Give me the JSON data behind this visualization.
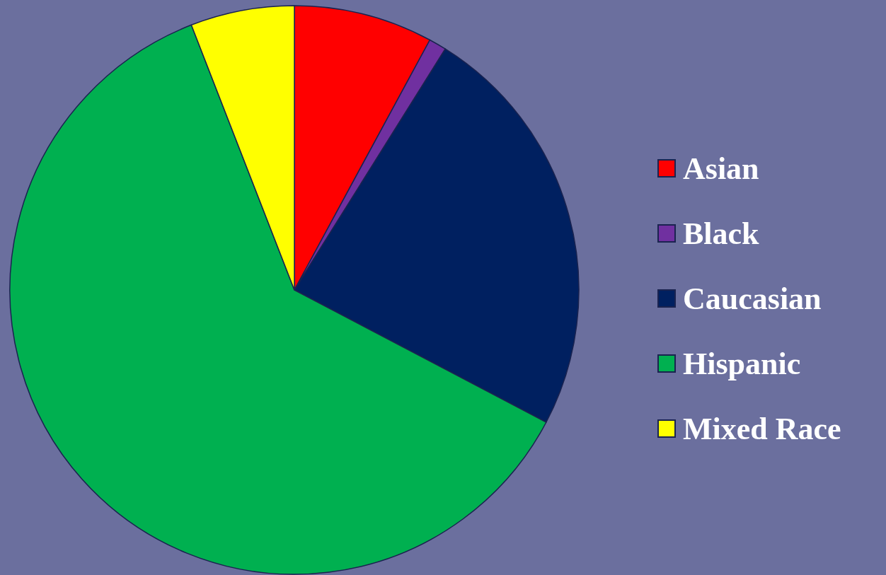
{
  "chart_data": {
    "type": "pie",
    "categories": [
      "Asian",
      "Black",
      "Caucasian",
      "Hispanic",
      "Mixed Race"
    ],
    "values": [
      7.9,
      1.0,
      23.8,
      61.4,
      5.9
    ],
    "colors": [
      "#ff0000",
      "#7030a0",
      "#002060",
      "#00b050",
      "#ffff00"
    ],
    "legend": "right"
  }
}
